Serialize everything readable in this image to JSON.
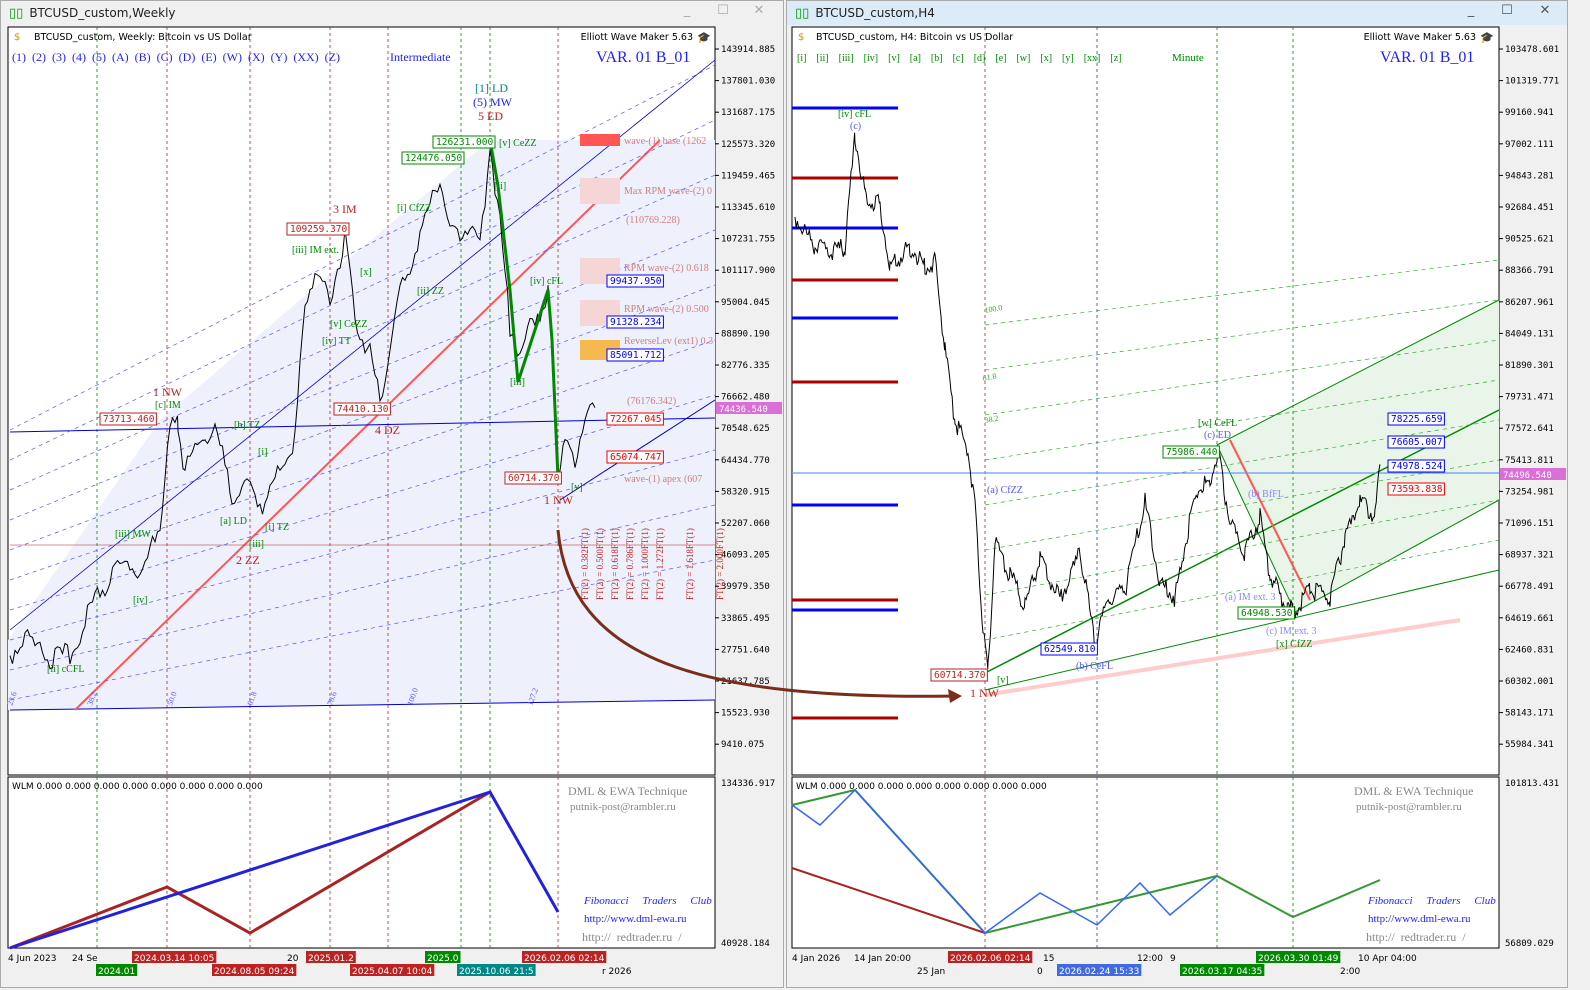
{
  "colors": {
    "bull": "#008000",
    "bear": "#b22222",
    "blue": "#1f1fff",
    "current_price_bg": "#da70d6",
    "panel_bg": "#f0f0ff"
  },
  "left": {
    "window_title": "BTCUSD_custom,Weekly",
    "chart_header": "BTCUSD_custom, Weekly:  Bitcoin vs US Dollar",
    "indicator_name": "Elliott Wave Maker 5.63",
    "wave_buttons": [
      "(1)",
      "(2)",
      "(3)",
      "(4)",
      "(5)",
      "(A)",
      "(B)",
      "(C)",
      "(D)",
      "(E)",
      "(W)",
      "(X)",
      "(Y)",
      "(XX)",
      "(Z)"
    ],
    "degree": "Intermediate",
    "variant": "VAR. 01 B_01",
    "price_axis": [
      "143914.885",
      "137801.030",
      "131687.175",
      "125573.320",
      "119459.465",
      "113345.610",
      "107231.755",
      "101117.900",
      "95004.045",
      "88890.190",
      "82776.335",
      "76662.480",
      "70548.625",
      "64434.770",
      "58320.915",
      "52207.060",
      "46093.205",
      "39979.350",
      "33865.495",
      "27751.640",
      "21637.785",
      "15523.930",
      "9410.075"
    ],
    "current_price": "74436.540",
    "indicator_axis": [
      "134336.917",
      "40928.184"
    ],
    "wave_labels": [
      "1 NW",
      "[c] IM",
      "3 IM",
      "[1] LD",
      "(5) MW",
      "5 ED",
      "[iii] IM ext.",
      "[i] CfZZ",
      "[ii] ZZ",
      "[iv] TT",
      "[v] CeZZ",
      "4 DZ",
      "2 ZZ",
      "[a] LD",
      "[i] TZ",
      "[b] TZ",
      "[iii] MW",
      "[iv]",
      "[ii] cCFL",
      "[iv] cFL",
      "[iii]",
      "[ii]",
      "[i]",
      "[v]",
      "1 NW",
      "[v] CeZZ",
      "[x]",
      "[iii]"
    ],
    "price_boxes": [
      "73713.460",
      "109259.370",
      "124476.050",
      "126231.000",
      "74410.130",
      "60714.370"
    ],
    "targets": [
      "wave-(1) base (1262",
      "Max RPM wave-(2) 0",
      "(110769.228)",
      "RPM wave-(2) 0.618",
      "99437.950",
      "RPM wave-(2) 0.500",
      "91328.234",
      "ReverseLev (ext1) 0.3",
      "85091.712",
      "(76176.342)",
      "72267.045",
      "65074.747",
      "wave-(1) apex (607"
    ],
    "ft_labels": [
      "FT(2) = 0.382FT(1)",
      "FT(2) = 0.500FT(1)",
      "FT(2) = 0.618FT(1)",
      "FT(2) = 0.786FT(1)",
      "FT(2) = 1.000FT(1)",
      "FT(2) = 1.272FT(1)",
      "FT(2) = 1.618FT(1)",
      "FT(2) = 2.000FT(1)"
    ],
    "fib_labels": [
      "23.6",
      "38.2",
      "50.0",
      "61.8",
      "78.6",
      "100.0",
      "127.2"
    ],
    "wlm": "WLM 0.000 0.000 0.000 0.000 0.000 0.000 0.000 0.000",
    "time_axis": [
      "4 Jun 2023",
      "24 Se",
      "2024.01",
      "2024.03.14 10:05",
      "2024.08.05 09:24",
      "20",
      "2025.01.2",
      "2025.04.07 10:04",
      "2025.0",
      "2025.10.06 21:5",
      "2026.02.06 02:14",
      "r 2026"
    ]
  },
  "right": {
    "window_title": "BTCUSD_custom,H4",
    "chart_header": "BTCUSD_custom, H4:  Bitcoin vs US Dollar",
    "indicator_name": "Elliott Wave Maker 5.63",
    "wave_buttons": [
      "[i]",
      "[ii]",
      "[iii]",
      "[iv]",
      "[v]",
      "[a]",
      "[b]",
      "[c]",
      "[d]",
      "[e]",
      "[w]",
      "[x]",
      "[y]",
      "[xx]",
      "[z]"
    ],
    "degree": "Minute",
    "variant": "VAR. 01 B_01",
    "price_axis": [
      "103478.601",
      "101319.771",
      "99160.941",
      "97002.111",
      "94843.281",
      "92684.451",
      "90525.621",
      "88366.791",
      "86207.961",
      "84049.131",
      "81890.301",
      "79731.471",
      "77572.641",
      "75413.811",
      "73254.981",
      "71096.151",
      "68937.321",
      "66778.491",
      "64619.661",
      "62460.831",
      "60302.001",
      "58143.171",
      "55984.341"
    ],
    "current_price": "74496.540",
    "indicator_axis": [
      "101813.431",
      "56809.029"
    ],
    "wave_labels": [
      "[iv] cFL",
      "(c)",
      "1 NW",
      "[v]",
      "(a) CfZZ",
      "(b) CeFL",
      "[w] CeFL",
      "(c) ED",
      "(b) BfFL",
      "(a) IM ext. 3",
      "(c) IM ext. 3",
      "[x] CfZZ"
    ],
    "fib_labels": [
      "100.0",
      "61.8",
      "38.2"
    ],
    "price_boxes": [
      "60714.370",
      "62549.810",
      "75986.440",
      "64948.530"
    ],
    "targets": [
      "78225.659",
      "76605.007",
      "74978.524",
      "73593.838"
    ],
    "wlm": "WLM 0.000 0.000 0.000 0.000 0.000 0.000 0.000 0.000",
    "time_axis": [
      "4 Jan 2026",
      "14 Jan 20:00",
      "25 Jan",
      "2026.02.06 02:14",
      "0",
      "15",
      "2026.02.24 15:33",
      "12:00",
      "9",
      "2026.03.17 04:35",
      "2026.03.30 01:49",
      "2:00",
      "10 Apr 04:00"
    ]
  },
  "credits": {
    "technique": "DML & EWA Technique",
    "email": "putnik-post@rambler.ru",
    "club": "Fibonacci     Traders     Club",
    "site1": "http://www.dml-ewa.ru",
    "site2": "http://  redtrader.ru  /"
  },
  "window_controls": {
    "minimize": "_",
    "maximize": "☐",
    "close": "✕"
  }
}
